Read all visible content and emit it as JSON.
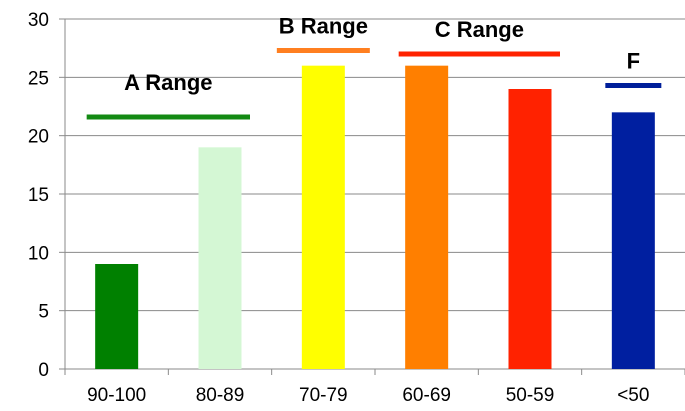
{
  "chart_data": {
    "type": "bar",
    "categories": [
      "90-100",
      "80-89",
      "70-79",
      "60-69",
      "50-59",
      "<50"
    ],
    "values": [
      9,
      19,
      26,
      26,
      24,
      22
    ],
    "colors": [
      "#008000",
      "#d4f7d4",
      "#ffff00",
      "#ff7f00",
      "#ff2200",
      "#001fa0"
    ],
    "title": "",
    "xlabel": "",
    "ylabel": "",
    "ylim": [
      0,
      30
    ],
    "yticks": [
      0,
      5,
      10,
      15,
      20,
      25,
      30
    ],
    "grid": true,
    "legend": "none",
    "annotations": [
      {
        "text": "A Range",
        "color": "#138a13",
        "span": [
          "90-100",
          "80-89"
        ],
        "level": 21.6
      },
      {
        "text": "B Range",
        "color": "#ff7f20",
        "span": [
          "70-79"
        ],
        "level": 27.3
      },
      {
        "text": "C Range",
        "color": "#ff2200",
        "span": [
          "60-69",
          "50-59"
        ],
        "level": 27.0
      },
      {
        "text": "F",
        "color": "#001f9a",
        "span": [
          "<50"
        ],
        "level": 24.3
      }
    ]
  }
}
